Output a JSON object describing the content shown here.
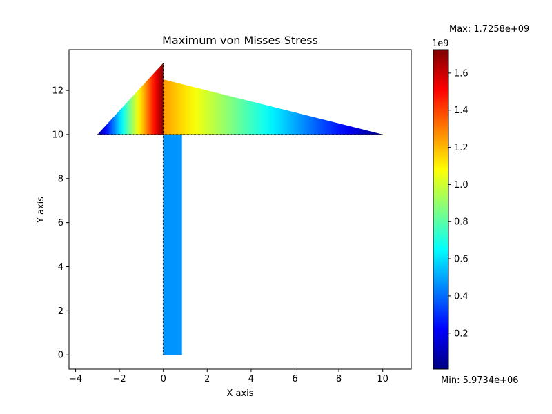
{
  "chart_data": {
    "type": "heatmap",
    "title": "Maximum von Misses Stress",
    "xlabel": "X axis",
    "ylabel": "Y axis",
    "xlim": [
      -4.3,
      11.3
    ],
    "ylim": [
      -0.65,
      13.85
    ],
    "x_ticks": [
      -4,
      -2,
      0,
      2,
      4,
      6,
      8,
      10
    ],
    "y_ticks": [
      0,
      2,
      4,
      6,
      8,
      10,
      12
    ],
    "grid": false,
    "colormap": "jet",
    "colorbar": {
      "range": [
        5973400,
        1725800000
      ],
      "offset_label": "1e9",
      "ticks": [
        0.2,
        0.4,
        0.6,
        0.8,
        1.0,
        1.2,
        1.4,
        1.6
      ],
      "tick_labels": [
        "0.2",
        "0.4",
        "0.6",
        "0.8",
        "1.0",
        "1.2",
        "1.4",
        "1.6"
      ]
    },
    "max_label": "Max: 1.7258e+09",
    "min_label": "Min: 5.9734e+06",
    "regions": [
      {
        "name": "left-wedge",
        "polygon": [
          [
            -3,
            10
          ],
          [
            0,
            10
          ],
          [
            0,
            13.25
          ]
        ],
        "gradient": {
          "axis": "x",
          "from_x": -3,
          "to_x": 0,
          "values": [
            5973400,
            1725800000
          ]
        }
      },
      {
        "name": "right-wedge",
        "polygon": [
          [
            0,
            10
          ],
          [
            10,
            10
          ],
          [
            10,
            10
          ],
          [
            0,
            12.5
          ]
        ],
        "gradient": {
          "axis": "x",
          "from_x": 0,
          "to_x": 10,
          "values": [
            1250000000,
            5973400
          ]
        }
      },
      {
        "name": "column",
        "polygon": [
          [
            0,
            0
          ],
          [
            0.85,
            0
          ],
          [
            0.85,
            10
          ],
          [
            0,
            10
          ]
        ],
        "value": 470000000
      }
    ],
    "edges": [
      [
        [
          -3,
          10
        ],
        [
          10,
          10
        ]
      ],
      [
        [
          0,
          0
        ],
        [
          0,
          10
        ]
      ],
      [
        [
          0,
          10
        ],
        [
          0,
          13.25
        ]
      ]
    ]
  }
}
